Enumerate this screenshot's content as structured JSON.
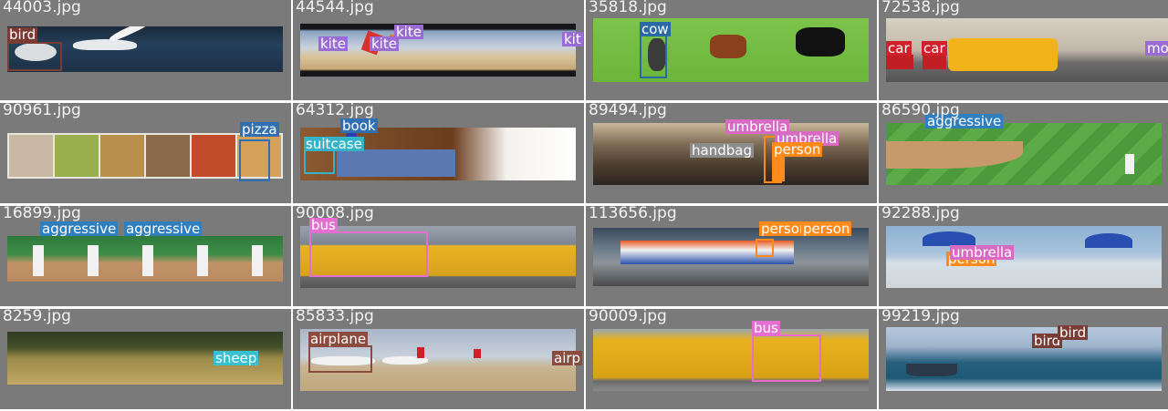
{
  "tiles": [
    {
      "filename": "44003.jpg",
      "labels": [
        "bird"
      ]
    },
    {
      "filename": "44544.jpg",
      "labels": [
        "kite",
        "kite",
        "kite",
        "kit"
      ]
    },
    {
      "filename": "35818.jpg",
      "labels": [
        "cow"
      ]
    },
    {
      "filename": "72538.jpg",
      "labels": [
        "car",
        "car",
        "mo"
      ]
    },
    {
      "filename": "90961.jpg",
      "labels": [
        "pizza"
      ]
    },
    {
      "filename": "64312.jpg",
      "labels": [
        "book",
        "suitcase"
      ]
    },
    {
      "filename": "89494.jpg",
      "labels": [
        "umbrella",
        "umbrella",
        "handbag",
        "person"
      ]
    },
    {
      "filename": "86590.jpg",
      "labels": [
        "aggressive"
      ]
    },
    {
      "filename": "16899.jpg",
      "labels": [
        "aggressive",
        "aggressive"
      ]
    },
    {
      "filename": "90008.jpg",
      "labels": [
        "bus"
      ]
    },
    {
      "filename": "113656.jpg",
      "labels": [
        "person",
        "person"
      ]
    },
    {
      "filename": "92288.jpg",
      "labels": [
        "umbrella",
        "person"
      ]
    },
    {
      "filename": "8259.jpg",
      "labels": [
        "sheep"
      ]
    },
    {
      "filename": "85833.jpg",
      "labels": [
        "airplane",
        "airp"
      ]
    },
    {
      "filename": "90009.jpg",
      "labels": [
        "bus"
      ]
    },
    {
      "filename": "99219.jpg",
      "labels": [
        "bird",
        "bird"
      ]
    }
  ],
  "colors": {
    "panel_bg": "#7a7a7a",
    "bird_label": "#7a3b35",
    "kite_label": "#9a6cd3",
    "cow_label": "#2a6aa4",
    "car_label": "#d2202a",
    "pizza_label": "#2f6fb2",
    "book_label": "#2f6fb2",
    "suitcase_label": "#34b3c8",
    "umbrella_label": "#d96ac4",
    "handbag_label": "#8c8c8c",
    "person_label": "#ff8a1c",
    "aggressive_label": "#2f7fbf",
    "bus_label": "#e56ed0",
    "sheep_label": "#36c0d0",
    "airplane_label": "#8b4b3e"
  }
}
